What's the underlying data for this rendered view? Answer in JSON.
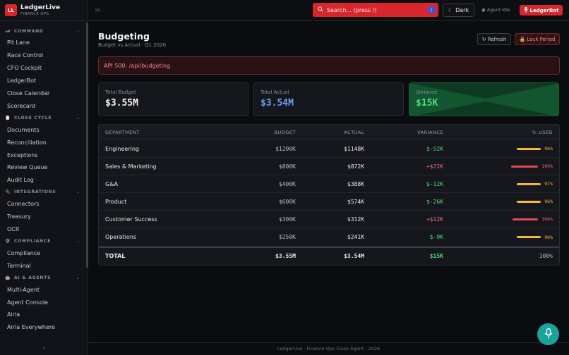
{
  "brand": {
    "logo": "LL",
    "name": "LedgerLive",
    "subtitle": "FINANCE OPS"
  },
  "sidebar": {
    "groups": [
      {
        "title": "COMMAND",
        "icon": "racecar-icon",
        "items": [
          "Pit Lane",
          "Race Control",
          "CFO Cockpit",
          "LedgerBot",
          "Close Calendar",
          "Scorecard"
        ]
      },
      {
        "title": "CLOSE CYCLE",
        "icon": "clipboard-icon",
        "items": [
          "Documents",
          "Reconciliation",
          "Exceptions",
          "Review Queue",
          "Audit Log"
        ]
      },
      {
        "title": "INTEGRATIONS",
        "icon": "plug-icon",
        "items": [
          "Connectors",
          "Treasury",
          "OCR"
        ]
      },
      {
        "title": "COMPLIANCE",
        "icon": "shield-icon",
        "items": [
          "Compliance",
          "Terminal"
        ]
      },
      {
        "title": "AI & AGENTS",
        "icon": "robot-icon",
        "items": [
          "Multi-Agent",
          "Agent Console",
          "Airia",
          "Airia Everywhere"
        ]
      }
    ],
    "collapse_label": "‹"
  },
  "topbar": {
    "breadcrumb": "LL",
    "search_placeholder": "Search... (press /)",
    "search_shortcut": "/",
    "theme_label": "Dark",
    "agent_status": "Agent Idle",
    "bot_button": "LedgerBot"
  },
  "page": {
    "title": "Budgeting",
    "subtitle": "Budget vs Actual · Q1 2026",
    "refresh_label": "↻ Refresh",
    "lock_label": "🔒 Lock Period",
    "error": "API 500: /api/budgeting"
  },
  "kpis": [
    {
      "label": "Total Budget",
      "value": "$3.55M",
      "color": "#f2f3f6"
    },
    {
      "label": "Total Actual",
      "value": "$3.54M",
      "color": "#6b9df0"
    },
    {
      "label": "Variance",
      "value": "$15K",
      "color": "#4ade80"
    }
  ],
  "table": {
    "headers": {
      "dept": "DEPARTMENT",
      "budget": "BUDGET",
      "actual": "ACTUAL",
      "variance": "VARIANCE",
      "used": "% USED"
    },
    "rows": [
      {
        "dept": "Engineering",
        "budget": "$1200K",
        "actual": "$1148K",
        "variance": "$-52K",
        "used": "96%",
        "used_value": 96,
        "positive": true
      },
      {
        "dept": "Sales & Marketing",
        "budget": "$800K",
        "actual": "$872K",
        "variance": "+$72K",
        "used": "109%",
        "used_value": 109,
        "positive": false
      },
      {
        "dept": "G&A",
        "budget": "$400K",
        "actual": "$388K",
        "variance": "$-12K",
        "used": "97%",
        "used_value": 97,
        "positive": true
      },
      {
        "dept": "Product",
        "budget": "$600K",
        "actual": "$574K",
        "variance": "$-26K",
        "used": "96%",
        "used_value": 96,
        "positive": true
      },
      {
        "dept": "Customer Success",
        "budget": "$300K",
        "actual": "$312K",
        "variance": "+$12K",
        "used": "104%",
        "used_value": 104,
        "positive": false
      },
      {
        "dept": "Operations",
        "budget": "$250K",
        "actual": "$241K",
        "variance": "$-9K",
        "used": "96%",
        "used_value": 96,
        "positive": true
      }
    ],
    "total": {
      "dept": "TOTAL",
      "budget": "$3.55M",
      "actual": "$3.54M",
      "variance": "$15K",
      "used": "100%"
    }
  },
  "colors": {
    "accent": "#d9262d",
    "positive": "#4ade80",
    "negative": "#f26d6d",
    "bar_ok": "#f5b82e",
    "bar_over": "#e5484d"
  },
  "footer": "LedgerLive · Finance Ops Close Agent · 2026"
}
